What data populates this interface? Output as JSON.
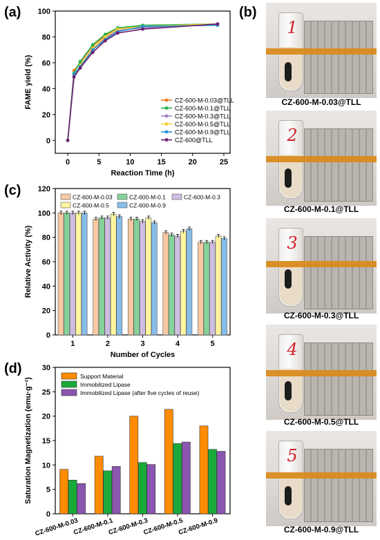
{
  "panel_labels": [
    "(a)",
    "(b)",
    "(c)",
    "(d)"
  ],
  "photos": [
    {
      "number": "1",
      "caption": "CZ-600-M-0.03@TLL"
    },
    {
      "number": "2",
      "caption": "CZ-600-M-0.1@TLL"
    },
    {
      "number": "3",
      "caption": "CZ-600-M-0.3@TLL"
    },
    {
      "number": "4",
      "caption": "CZ-600-M-0.5@TLL"
    },
    {
      "number": "5",
      "caption": "CZ-600-M-0.9@TLL"
    }
  ],
  "chart_data": [
    {
      "type": "line",
      "panel": "(a)",
      "xlabel": "Reaction Time (h)",
      "ylabel": "FAME yield (%)",
      "xlim": [
        -2,
        26
      ],
      "ylim": [
        -10,
        100
      ],
      "xticks": [
        0,
        5,
        10,
        15,
        20,
        25
      ],
      "yticks": [
        0,
        20,
        40,
        60,
        80,
        100
      ],
      "legend_position": "bottom-right",
      "grid": false,
      "x": [
        0,
        1,
        2,
        4,
        6,
        8,
        12,
        24
      ],
      "series": [
        {
          "name": "CZ-600-M-0.03@TLL",
          "color": "#f07a1a",
          "values": [
            0,
            54,
            60,
            73,
            81,
            87,
            88,
            90
          ]
        },
        {
          "name": "CZ-600-M-0.1@TLL",
          "color": "#22b24c",
          "values": [
            0,
            52,
            61,
            74,
            82,
            87,
            89,
            90
          ]
        },
        {
          "name": "CZ-600-M-0.3@TLL",
          "color": "#a07cc5",
          "values": [
            0,
            49,
            56,
            70,
            79,
            85,
            87,
            90
          ]
        },
        {
          "name": "CZ-600-M-0.5@TLL",
          "color": "#f2d12c",
          "values": [
            0,
            50,
            58,
            71,
            80,
            86,
            88,
            90
          ]
        },
        {
          "name": "CZ-600-M-0.9@TLL",
          "color": "#2a8fd6",
          "values": [
            0,
            51,
            57,
            70,
            78,
            84,
            88,
            89
          ]
        },
        {
          "name": "CZ-600@TLL",
          "color": "#6a1f6e",
          "values": [
            0,
            49,
            56,
            68,
            77,
            83,
            86,
            90
          ]
        }
      ]
    },
    {
      "type": "bar",
      "panel": "(c)",
      "xlabel": "Number of Cycles",
      "ylabel": "Relative Activity (%)",
      "ylim": [
        0,
        120
      ],
      "yticks": [
        0,
        20,
        40,
        60,
        80,
        100,
        120
      ],
      "categories": [
        "1",
        "2",
        "3",
        "4",
        "5"
      ],
      "legend_position": "top",
      "series": [
        {
          "name": "CZ-600-M-0.03",
          "color": "#f8c9a3",
          "values": [
            100,
            95,
            95,
            84,
            76
          ]
        },
        {
          "name": "CZ-600-M-0.1",
          "color": "#86d39a",
          "values": [
            100,
            96,
            95,
            82,
            76
          ]
        },
        {
          "name": "CZ-600-M-0.3",
          "color": "#cdbde0",
          "values": [
            100,
            96,
            93,
            81,
            76
          ]
        },
        {
          "name": "CZ-600-M-0.5",
          "color": "#fdf5a0",
          "values": [
            100,
            99,
            96,
            85,
            81
          ]
        },
        {
          "name": "CZ-600-M-0.9",
          "color": "#86bde9",
          "values": [
            100,
            97,
            92,
            87,
            79
          ]
        }
      ]
    },
    {
      "type": "bar",
      "panel": "(d)",
      "xlabel": "",
      "ylabel": "Saturation Magnetization (emu·g⁻¹)",
      "ylim": [
        0,
        30
      ],
      "yticks": [
        0,
        5,
        10,
        15,
        20,
        25,
        30
      ],
      "categories": [
        "CZ-600-M-0.03",
        "CZ-600-M-0.1",
        "CZ-600-M-0.3",
        "CZ-600-M-0.5",
        "CZ-600-M-0.9"
      ],
      "legend_position": "top-left",
      "series": [
        {
          "name": "Support Material",
          "color": "#ff8c00",
          "values": [
            9.1,
            11.8,
            20.0,
            21.4,
            18.0
          ]
        },
        {
          "name": "Immobilized Lipase",
          "color": "#1aaa3a",
          "values": [
            6.9,
            8.8,
            10.5,
            14.4,
            13.2
          ]
        },
        {
          "name": "Immobilized Lipase (after five cycles of reuse)",
          "color": "#8a56b0",
          "values": [
            6.2,
            9.7,
            10.1,
            14.7,
            12.8
          ]
        }
      ]
    }
  ]
}
